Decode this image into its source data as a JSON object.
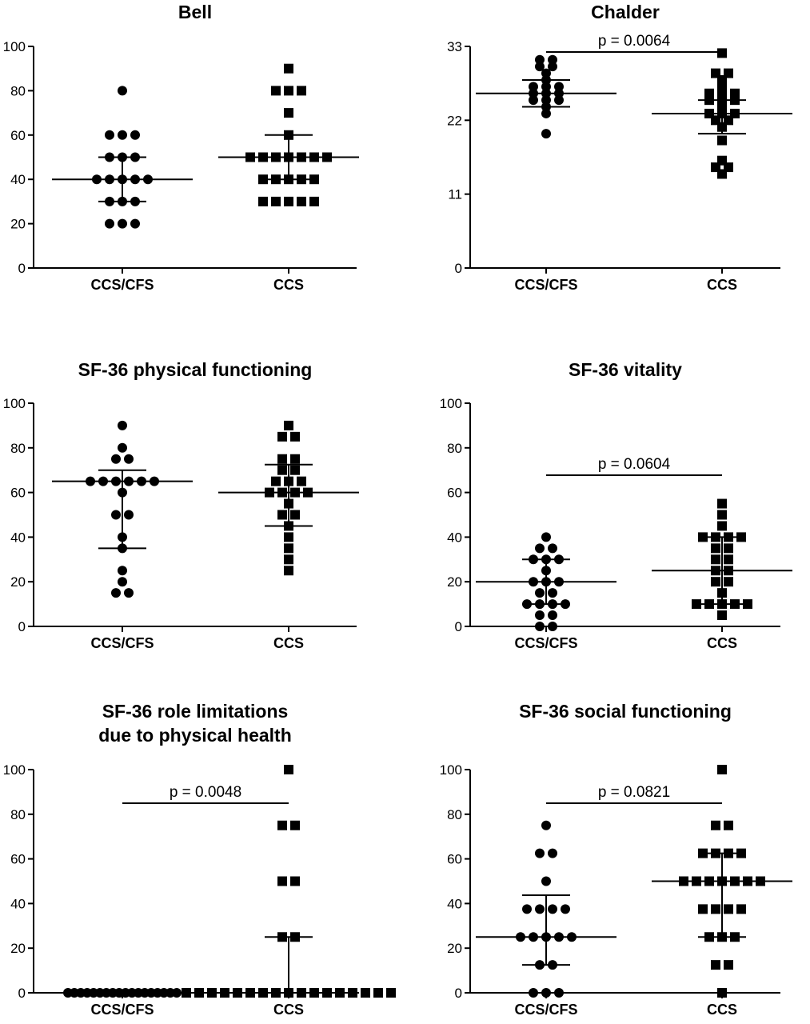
{
  "figure": {
    "panel_count": 6
  },
  "chart_data": [
    {
      "type": "scatter",
      "title": [
        "Bell"
      ],
      "categories": [
        "CCS/CFS",
        "CCS"
      ],
      "ylim": [
        0,
        100
      ],
      "yticks": [
        "0",
        "20",
        "40",
        "60",
        "80",
        "100"
      ],
      "pvalue": "",
      "markers": [
        "circle",
        "square"
      ],
      "series": [
        {
          "values": [
            80,
            60,
            60,
            60,
            50,
            50,
            50,
            40,
            40,
            40,
            40,
            40,
            30,
            30,
            30,
            20,
            20,
            20
          ],
          "median": 40,
          "q1": 30,
          "q3": 50
        },
        {
          "values": [
            90,
            80,
            80,
            80,
            70,
            60,
            50,
            50,
            50,
            50,
            50,
            50,
            50,
            40,
            40,
            40,
            40,
            40,
            30,
            30,
            30,
            30,
            30
          ],
          "median": 50,
          "q1": 40,
          "q3": 60
        }
      ]
    },
    {
      "type": "scatter",
      "title": [
        "Chalder"
      ],
      "categories": [
        "CCS/CFS",
        "CCS"
      ],
      "ylim": [
        0,
        33
      ],
      "yticks": [
        "0",
        "11",
        "22",
        "33"
      ],
      "pvalue": "p = 0.0064",
      "markers": [
        "circle",
        "square"
      ],
      "series": [
        {
          "values": [
            31,
            31,
            30,
            30,
            29,
            28,
            27,
            27,
            27,
            26,
            26,
            26,
            25,
            25,
            25,
            24,
            23,
            20
          ],
          "median": 26,
          "q1": 24,
          "q3": 28
        },
        {
          "values": [
            32,
            29,
            29,
            28,
            27,
            26,
            26,
            26,
            25,
            25,
            25,
            24,
            23,
            23,
            23,
            22,
            22,
            21,
            19,
            16,
            15,
            15,
            14
          ],
          "median": 23,
          "q1": 20,
          "q3": 25
        }
      ]
    },
    {
      "type": "scatter",
      "title": [
        "SF-36 physical functioning"
      ],
      "categories": [
        "CCS/CFS",
        "CCS"
      ],
      "ylim": [
        0,
        100
      ],
      "yticks": [
        "0",
        "20",
        "40",
        "60",
        "80",
        "100"
      ],
      "pvalue": "",
      "markers": [
        "circle",
        "square"
      ],
      "series": [
        {
          "values": [
            90,
            80,
            75,
            75,
            65,
            65,
            65,
            65,
            65,
            65,
            60,
            50,
            50,
            40,
            35,
            25,
            20,
            15,
            15
          ],
          "median": 65,
          "q1": 35,
          "q3": 70
        },
        {
          "values": [
            90,
            85,
            85,
            75,
            75,
            70,
            70,
            65,
            65,
            65,
            60,
            60,
            60,
            60,
            55,
            50,
            50,
            45,
            40,
            35,
            30,
            25
          ],
          "median": 60,
          "q1": 45,
          "q3": 72.5
        }
      ]
    },
    {
      "type": "scatter",
      "title": [
        "SF-36 vitality"
      ],
      "categories": [
        "CCS/CFS",
        "CCS"
      ],
      "ylim": [
        0,
        100
      ],
      "yticks": [
        "0",
        "20",
        "40",
        "60",
        "80",
        "100"
      ],
      "pvalue": "p = 0.0604",
      "markers": [
        "circle",
        "square"
      ],
      "series": [
        {
          "values": [
            40,
            35,
            35,
            30,
            30,
            30,
            25,
            20,
            20,
            20,
            15,
            15,
            10,
            10,
            10,
            10,
            5,
            5,
            0,
            0
          ],
          "median": 20,
          "q1": 10,
          "q3": 30
        },
        {
          "values": [
            55,
            50,
            45,
            40,
            40,
            40,
            40,
            35,
            35,
            30,
            30,
            25,
            25,
            20,
            20,
            15,
            10,
            10,
            10,
            10,
            10,
            5
          ],
          "median": 25,
          "q1": 10,
          "q3": 40
        }
      ]
    },
    {
      "type": "scatter",
      "title": [
        "SF-36 role limitations",
        "due to physical health"
      ],
      "categories": [
        "CCS/CFS",
        "CCS"
      ],
      "ylim": [
        0,
        100
      ],
      "yticks": [
        "0",
        "20",
        "40",
        "60",
        "80",
        "100"
      ],
      "pvalue": "p = 0.0048",
      "markers": [
        "circle",
        "square"
      ],
      "series": [
        {
          "values": [
            0,
            0,
            0,
            0,
            0,
            0,
            0,
            0,
            0,
            0,
            0,
            0,
            0,
            0,
            0,
            0,
            0,
            0
          ],
          "median": 0,
          "q1": 0,
          "q3": 0
        },
        {
          "values": [
            100,
            75,
            75,
            50,
            50,
            25,
            25,
            0,
            0,
            0,
            0,
            0,
            0,
            0,
            0,
            0,
            0,
            0,
            0,
            0,
            0,
            0,
            0,
            0
          ],
          "median": 0,
          "q1": 0,
          "q3": 25
        }
      ]
    },
    {
      "type": "scatter",
      "title": [
        "SF-36 social functioning"
      ],
      "categories": [
        "CCS/CFS",
        "CCS"
      ],
      "ylim": [
        0,
        100
      ],
      "yticks": [
        "0",
        "20",
        "40",
        "60",
        "80",
        "100"
      ],
      "pvalue": "p = 0.0821",
      "markers": [
        "circle",
        "square"
      ],
      "series": [
        {
          "values": [
            75,
            62.5,
            62.5,
            50,
            37.5,
            37.5,
            37.5,
            37.5,
            25,
            25,
            25,
            25,
            25,
            12.5,
            12.5,
            0,
            0,
            0
          ],
          "median": 25,
          "q1": 12.5,
          "q3": 43.75
        },
        {
          "values": [
            100,
            75,
            75,
            62.5,
            62.5,
            62.5,
            62.5,
            50,
            50,
            50,
            50,
            50,
            50,
            50,
            37.5,
            37.5,
            37.5,
            37.5,
            25,
            25,
            25,
            12.5,
            12.5,
            0
          ],
          "median": 50,
          "q1": 25,
          "q3": 62.5
        }
      ]
    }
  ]
}
